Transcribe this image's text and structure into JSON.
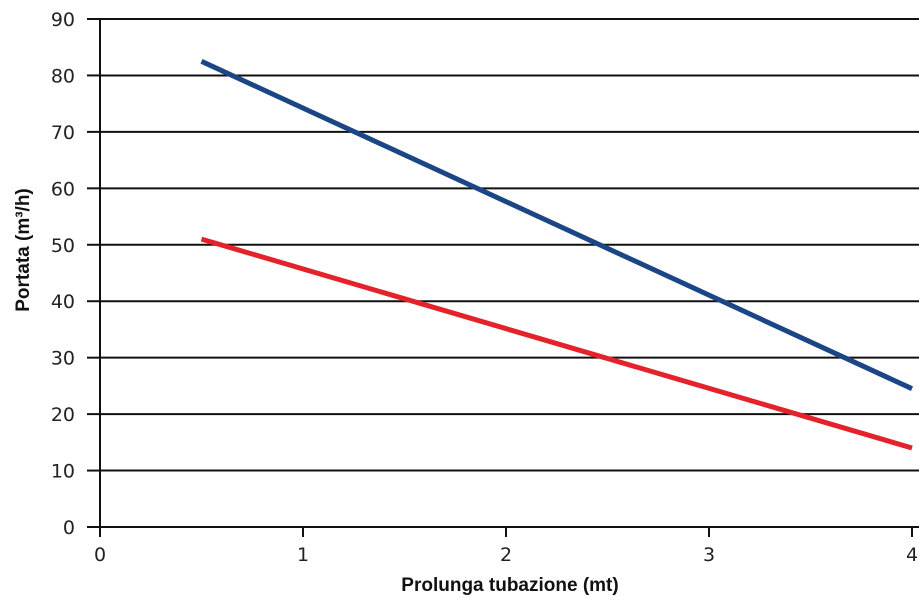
{
  "chart_data": {
    "type": "line",
    "xlabel": "Prolunga tubazione (mt)",
    "ylabel": "Portata (m³/h)",
    "xlim": [
      0,
      4
    ],
    "ylim": [
      0,
      90
    ],
    "xticks": [
      0,
      1,
      2,
      3,
      4
    ],
    "yticks": [
      0,
      10,
      20,
      30,
      40,
      50,
      60,
      70,
      80,
      90
    ],
    "x_tick_labels": [
      "0",
      "1",
      "2",
      "3",
      "4"
    ],
    "y_tick_labels": [
      "0",
      "10",
      "20",
      "30",
      "40",
      "50",
      "60",
      "70",
      "80",
      "90"
    ],
    "grid": "horizontal",
    "legend": "none",
    "series": [
      {
        "color": "#1b4585",
        "x": [
          0.5,
          4.0
        ],
        "y": [
          82.5,
          24.5
        ]
      },
      {
        "color": "#e3222b",
        "x": [
          0.5,
          4.0
        ],
        "y": [
          51.0,
          14.0
        ]
      }
    ]
  }
}
